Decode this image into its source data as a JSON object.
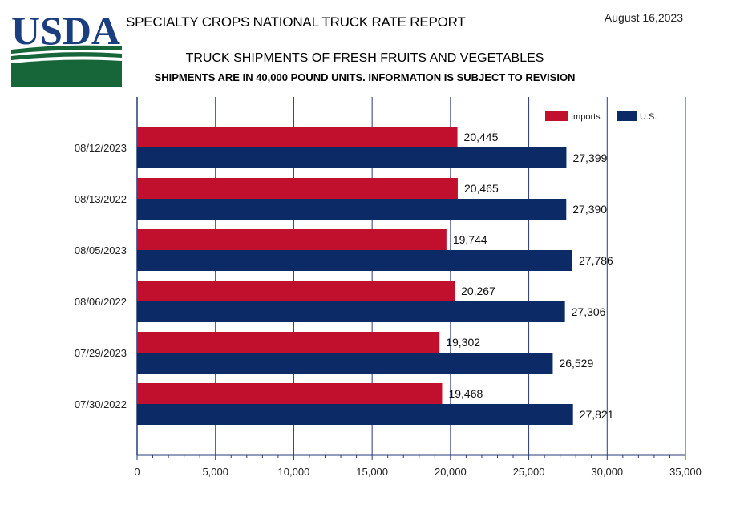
{
  "header": {
    "logo_text": "USDA",
    "report_title": "SPECIALTY CROPS NATIONAL TRUCK RATE REPORT",
    "date": "August 16,2023"
  },
  "colors": {
    "imports": "#c0102e",
    "us": "#0c2a66",
    "gridline": "#2a3a78",
    "logo_blue": "#1b3e7e",
    "logo_green": "#16663a"
  },
  "chart_data": {
    "type": "bar",
    "orientation": "horizontal",
    "title": "TRUCK SHIPMENTS OF FRESH FRUITS AND VEGETABLES",
    "subtitle": "SHIPMENTS ARE IN 40,000 POUND UNITS. INFORMATION IS SUBJECT TO REVISION",
    "categories": [
      "08/12/2023",
      "08/13/2022",
      "08/05/2023",
      "08/06/2022",
      "07/29/2023",
      "07/30/2022"
    ],
    "series": [
      {
        "name": "Imports",
        "values": [
          20445,
          20465,
          19744,
          20267,
          19302,
          19468
        ],
        "labels": [
          "20,445",
          "20,465",
          "19,744",
          "20,267",
          "19,302",
          "19,468"
        ]
      },
      {
        "name": "U.S.",
        "values": [
          27399,
          27390,
          27786,
          27306,
          26529,
          27821
        ],
        "labels": [
          "27,399",
          "27,390",
          "27,786",
          "27,306",
          "26,529",
          "27,821"
        ]
      }
    ],
    "xlim": [
      0,
      35000
    ],
    "xticks": [
      0,
      5000,
      10000,
      15000,
      20000,
      25000,
      30000,
      35000
    ],
    "xtick_labels": [
      "0",
      "5,000",
      "10,000",
      "15,000",
      "20,000",
      "25,000",
      "30,000",
      "35,000"
    ],
    "grid": "vertical",
    "legend_position": "top-right"
  }
}
